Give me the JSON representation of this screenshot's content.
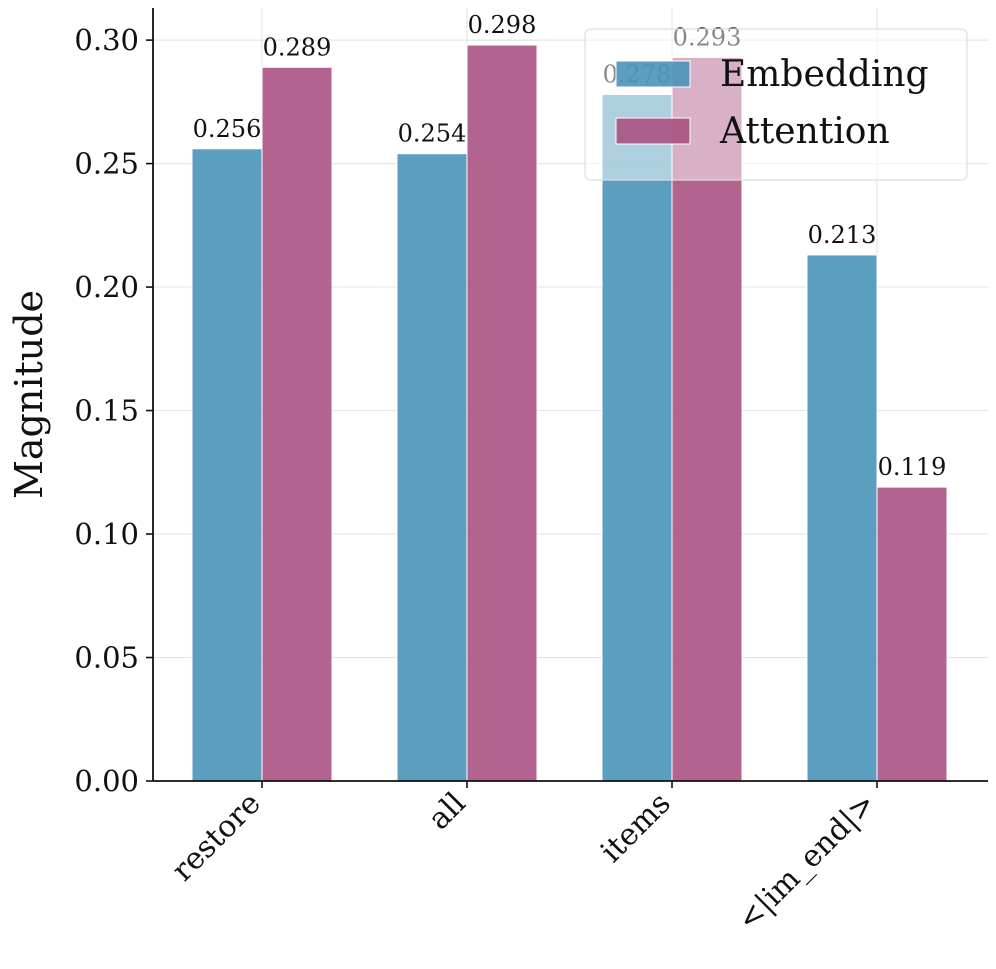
{
  "chart_data": {
    "type": "bar",
    "title": "",
    "xlabel": "",
    "ylabel": "Magnitude",
    "categories": [
      "restore",
      "all",
      "items",
      "<|im_end|>"
    ],
    "series": [
      {
        "name": "Embedding",
        "values": [
          0.256,
          0.254,
          0.278,
          0.213
        ],
        "labels": [
          "0.256",
          "0.254",
          "0.278",
          "0.213"
        ],
        "color": "#4a94b8"
      },
      {
        "name": "Attention",
        "values": [
          0.289,
          0.298,
          0.293,
          0.119
        ],
        "labels": [
          "0.289",
          "0.298",
          "0.293",
          "0.119"
        ],
        "color": "#aa5283"
      }
    ],
    "ylim": [
      0,
      0.313
    ],
    "yticks": [
      0.0,
      0.05,
      0.1,
      0.15,
      0.2,
      0.25,
      0.3
    ],
    "ytick_labels": [
      "0.00",
      "0.05",
      "0.10",
      "0.15",
      "0.20",
      "0.25",
      "0.30"
    ],
    "grid": true,
    "legend_position": "top-right"
  }
}
